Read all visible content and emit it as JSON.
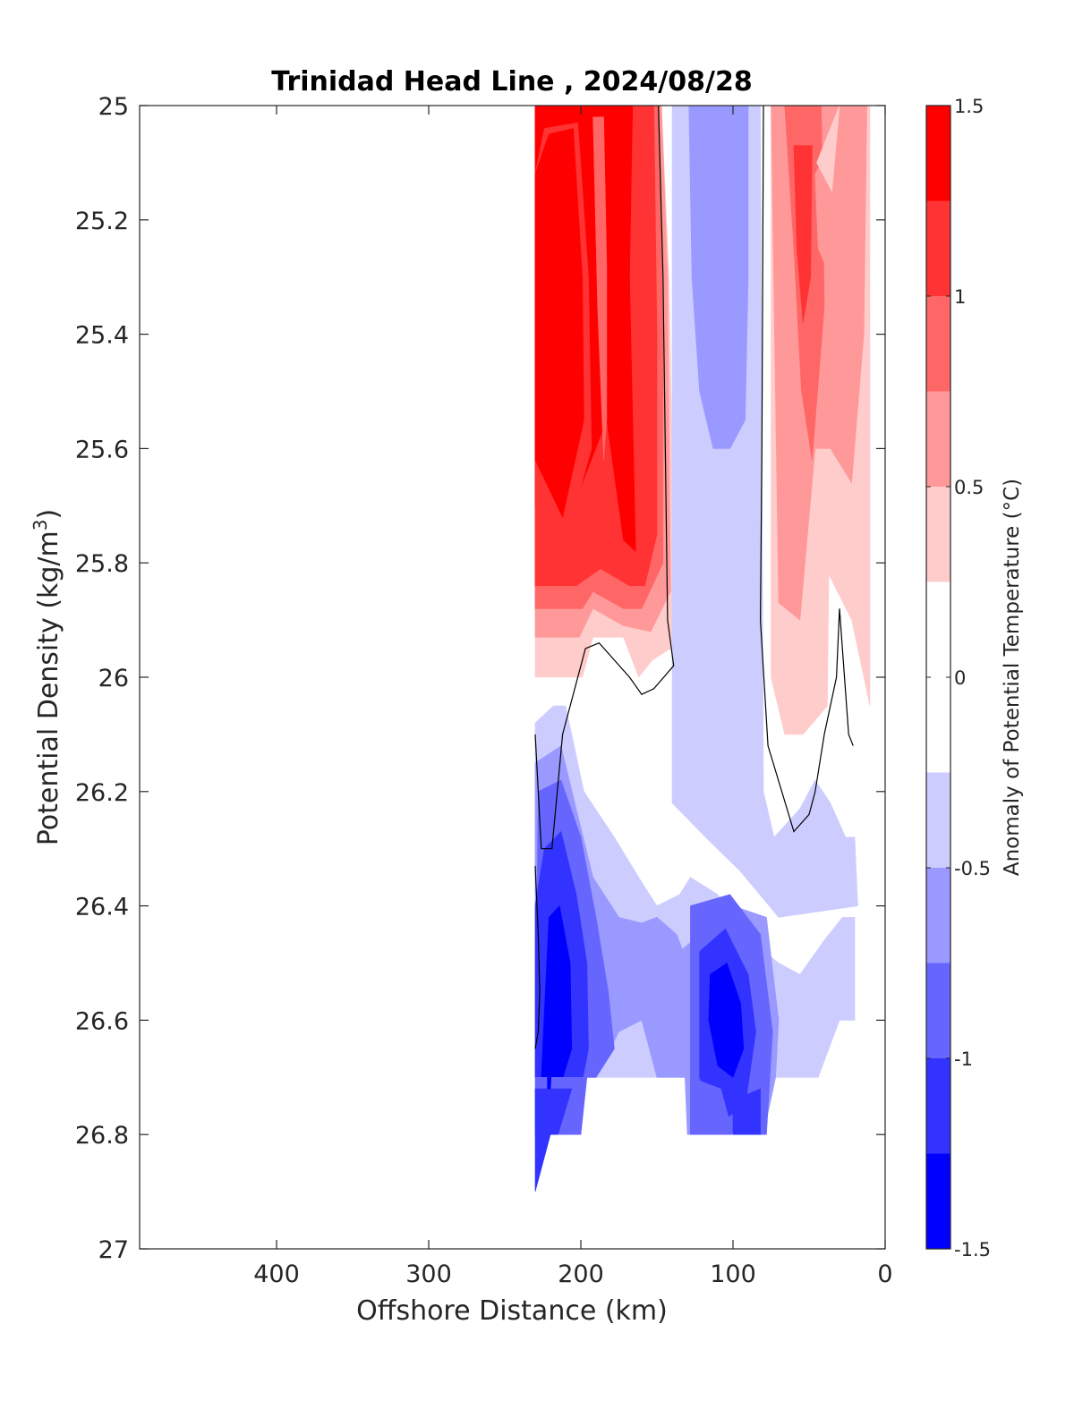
{
  "chart_data": {
    "type": "heatmap",
    "title": "Trinidad Head Line , 2024/08/28",
    "xlabel": "Offshore Distance (km)",
    "ylabel": "Potential Density (kg/m",
    "ylabel_superscript": "3",
    "ylabel_close": ")",
    "colorbar_label": "Anomaly of Potential Temperature (°C)",
    "x_reversed": true,
    "xlim": [
      490,
      0
    ],
    "x_ticks": [
      400,
      300,
      200,
      100,
      0
    ],
    "x_tick_labels": [
      "400",
      "300",
      "200",
      "100",
      "0"
    ],
    "y_reversed": true,
    "ylim": [
      25,
      27
    ],
    "y_ticks": [
      25,
      25.2,
      25.4,
      25.6,
      25.8,
      26,
      26.2,
      26.4,
      26.6,
      26.8,
      27
    ],
    "y_tick_labels": [
      "25",
      "25.2",
      "25.4",
      "25.6",
      "25.8",
      "26",
      "26.2",
      "26.4",
      "26.6",
      "26.8",
      "27"
    ],
    "clim": [
      -1.5,
      1.5
    ],
    "colorbar_ticks": [
      1.5,
      1,
      0.5,
      0,
      -0.5,
      -1,
      -1.5
    ],
    "colorbar_tick_labels": [
      "1.5",
      "1",
      "0.5",
      "0",
      "-0.5",
      "-1",
      "-1.5"
    ],
    "levels": [
      {
        "lo": 1.25,
        "hi": 1.5,
        "color": "#ff0000"
      },
      {
        "lo": 1.0,
        "hi": 1.25,
        "color": "#ff3333"
      },
      {
        "lo": 0.75,
        "hi": 1.0,
        "color": "#ff6666"
      },
      {
        "lo": 0.5,
        "hi": 0.75,
        "color": "#ff9999"
      },
      {
        "lo": 0.25,
        "hi": 0.5,
        "color": "#ffcccc"
      },
      {
        "lo": -0.25,
        "hi": 0.25,
        "color": "#ffffff"
      },
      {
        "lo": -0.5,
        "hi": -0.25,
        "color": "#ccccff"
      },
      {
        "lo": -0.75,
        "hi": -0.5,
        "color": "#9999ff"
      },
      {
        "lo": -1.0,
        "hi": -0.75,
        "color": "#6666ff"
      },
      {
        "lo": -1.25,
        "hi": -1.0,
        "color": "#3333ff"
      },
      {
        "lo": -1.5,
        "hi": -1.25,
        "color": "#0000ff"
      }
    ],
    "data_coverage": {
      "x_range": [
        10,
        230
      ],
      "y_range": [
        25,
        26.9
      ]
    },
    "fields": [
      {
        "name": "warm-core-offshore",
        "x": [
          230,
          180
        ],
        "y": [
          25,
          26.0
        ],
        "level": 1.375
      },
      {
        "name": "warm-core-inshore",
        "x": [
          170,
          135
        ],
        "y": [
          25,
          26.0
        ],
        "level": 1.125
      },
      {
        "name": "cool-band-nearshore-mid",
        "x": [
          135,
          80
        ],
        "y": [
          25,
          26.1
        ],
        "level": -0.375
      },
      {
        "name": "warm-band-nearshore",
        "x": [
          75,
          10
        ],
        "y": [
          25,
          26.1
        ],
        "level": 0.625
      },
      {
        "name": "cool-deep-offshore",
        "x": [
          230,
          150
        ],
        "y": [
          26.1,
          26.8
        ],
        "level": -0.875
      },
      {
        "name": "cool-deep-mid",
        "x": [
          130,
          80
        ],
        "y": [
          26.3,
          26.8
        ],
        "level": -1.125
      },
      {
        "name": "cool-deep-nearshore",
        "x": [
          70,
          20
        ],
        "y": [
          26.3,
          26.7
        ],
        "level": -0.625
      }
    ]
  }
}
